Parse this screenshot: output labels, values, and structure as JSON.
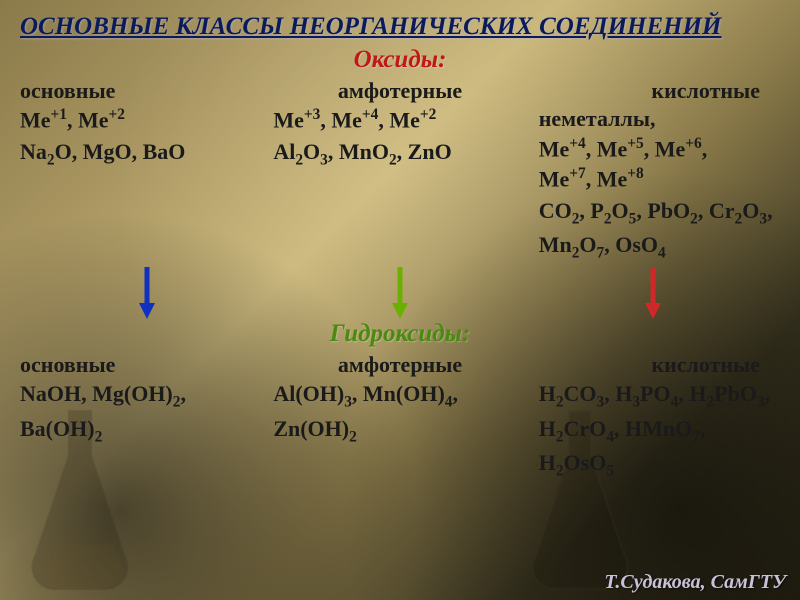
{
  "colors": {
    "title": "#0a1a5a",
    "oxides_head": "#c01818",
    "hydroxides_head": "#4a8a10",
    "col_head": "#1a1a1a",
    "body": "#1a1a1a",
    "arrow_basic": "#1030c0",
    "arrow_amph": "#6ab000",
    "arrow_acid": "#d02828",
    "credit": "#c8c2d8"
  },
  "title": "ОСНОВНЫЕ КЛАССЫ НЕОРГАНИЧЕСКИХ СОЕДИНЕНИЙ",
  "oxides": {
    "heading": "Оксиды:",
    "basic": {
      "head": "основные",
      "rule": "Me<sup>+1</sup>, Me<sup>+2</sup>",
      "examples": "Na<sub>2</sub>O, MgO, BaO"
    },
    "amphoteric": {
      "head": "амфотерные",
      "rule": "Me<sup>+3</sup>, Me<sup>+4</sup>, Me<sup>+2</sup>",
      "examples": "Al<sub>2</sub>O<sub>3</sub>, MnO<sub>2</sub>, ZnO"
    },
    "acidic": {
      "head": "кислотные",
      "rule": "неметаллы,<br>Me<sup>+4</sup>, Me<sup>+5</sup>, Me<sup>+6</sup>,<br>Me<sup>+7</sup>, Me<sup>+8</sup>",
      "examples": "CO<sub>2</sub>, P<sub>2</sub>O<sub>5</sub>, PbO<sub>2</sub>, Cr<sub>2</sub>O<sub>3</sub>, Mn<sub>2</sub>O<sub>7</sub>, OsO<sub>4</sub>"
    }
  },
  "hydroxides": {
    "heading": "Гидроксиды:",
    "basic": {
      "head": "основные",
      "examples": "NaOH, Mg(OH)<sub>2</sub>, Ba(OH)<sub>2</sub>"
    },
    "amphoteric": {
      "head": "амфотерные",
      "examples": "Al(OH)<sub>3</sub>, Mn(OH)<sub>4</sub>, Zn(OH)<sub>2</sub>"
    },
    "acidic": {
      "head": "кислотные",
      "examples": "H<sub>2</sub>CO<sub>3</sub>, H<sub>3</sub>PO<sub>4</sub>, H<sub>2</sub>PbO<sub>3</sub>, H<sub>2</sub>CrO<sub>4</sub>, HMnO<sub>7</sub>, H<sub>2</sub>OsO<sub>5</sub>"
    }
  },
  "credit": "Т.Судакова, СамГТУ"
}
